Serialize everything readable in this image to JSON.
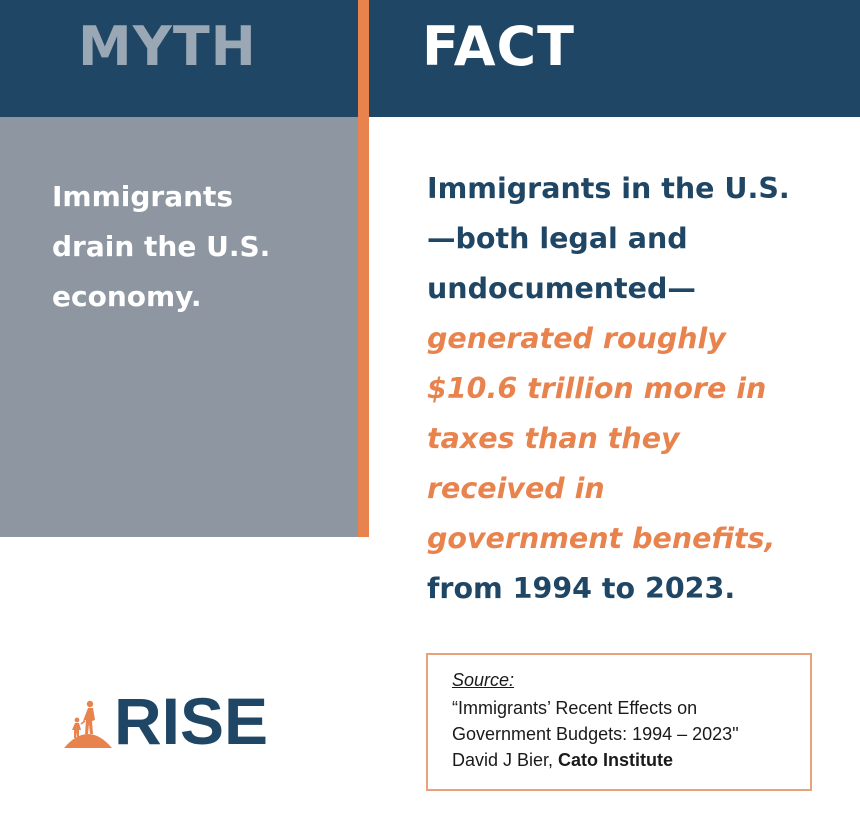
{
  "header": {
    "myth_label": "MYTH",
    "fact_label": "FACT"
  },
  "myth": {
    "lines": [
      "Immigrants",
      "drain the U.S.",
      "economy."
    ]
  },
  "fact": {
    "lines": [
      "Immigrants in the U.S.",
      "—both legal and",
      "undocumented—",
      "generated roughly",
      "$10.6 trillion more in",
      "taxes than they",
      "received in",
      "government benefits,",
      "from 1994 to 2023."
    ]
  },
  "logo": {
    "text": "RISE"
  },
  "source": {
    "label": "Source:",
    "title_line1": "“Immigrants’ Recent Effects on",
    "title_line2": "Government Budgets: 1994 – 2023\"",
    "author": "David J Bier, ",
    "organization": "Cato Institute"
  },
  "colors": {
    "navy": "#1f4664",
    "orange": "#e8834e",
    "gray": "#8e97a1"
  }
}
